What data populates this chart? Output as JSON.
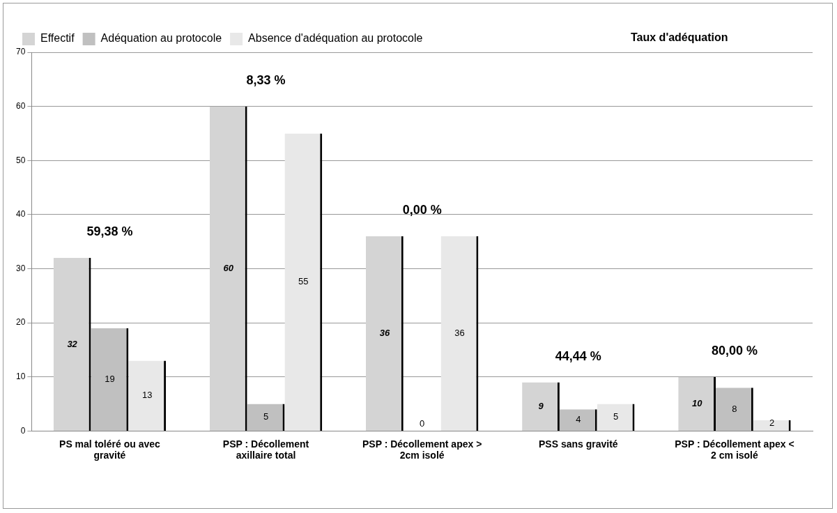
{
  "chart_data": {
    "type": "bar",
    "legend_title": "Taux d'adéquation",
    "categories": [
      "PS mal toléré ou avec gravité",
      "PSP : Décollement axillaire total",
      "PSP : Décollement apex > 2cm isolé",
      "PSS sans gravité",
      "PSP : Décollement apex < 2 cm isolé"
    ],
    "series": [
      {
        "name": "Effectif",
        "color": "#d4d4d4",
        "values": [
          32,
          60,
          36,
          9,
          10
        ]
      },
      {
        "name": "Adéquation au protocole",
        "color": "#c0c0c0",
        "values": [
          19,
          5,
          0,
          4,
          8
        ]
      },
      {
        "name": "Absence d'adéquation au protocole",
        "color": "#e8e8e8",
        "values": [
          13,
          55,
          36,
          5,
          2
        ]
      }
    ],
    "ylim": [
      0,
      70
    ],
    "yticks": [
      0,
      10,
      20,
      30,
      40,
      50,
      60,
      70
    ],
    "grid": "y",
    "legend": "top",
    "data_labels": true,
    "annotations": [
      "59,38 %",
      "8,33 %",
      "0,00 %",
      "44,44 %",
      "80,00 %"
    ]
  }
}
